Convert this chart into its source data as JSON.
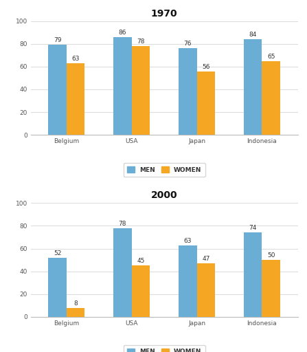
{
  "title_1970": "1970",
  "title_2000": "2000",
  "categories": [
    "Belgium",
    "USA",
    "Japan",
    "Indonesia"
  ],
  "data_1970": {
    "men": [
      79,
      86,
      76,
      84
    ],
    "women": [
      63,
      78,
      56,
      65
    ]
  },
  "data_2000": {
    "men": [
      52,
      78,
      63,
      74
    ],
    "women": [
      8,
      45,
      47,
      50
    ]
  },
  "bar_color_men": "#6aadd5",
  "bar_color_women": "#f5a623",
  "bar_width": 0.28,
  "ylim": [
    0,
    100
  ],
  "yticks": [
    0,
    20,
    40,
    60,
    80,
    100
  ],
  "legend_men": "MEN",
  "legend_women": "WOMEN",
  "title_fontsize": 10,
  "tick_fontsize": 6.5,
  "value_fontsize": 6.5,
  "legend_fontsize": 6.5,
  "background_color": "#ffffff",
  "axes_background": "#ffffff",
  "grid_color": "#dddddd",
  "grid_linewidth": 0.8
}
